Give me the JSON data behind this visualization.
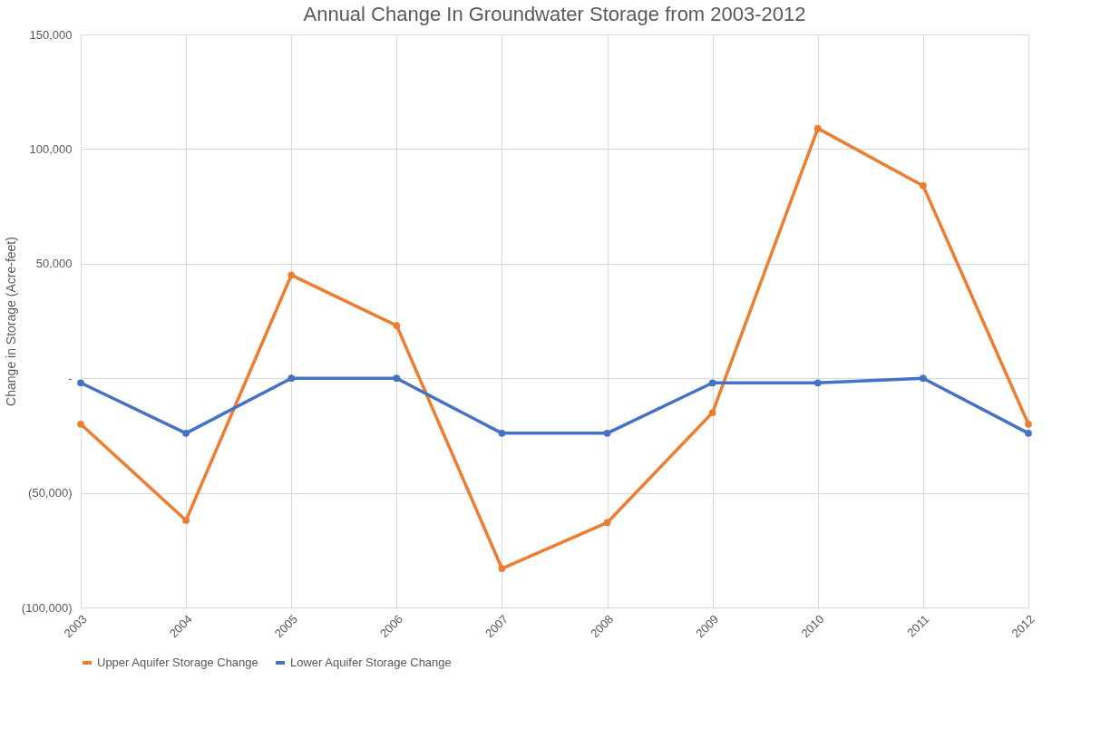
{
  "chart_data": {
    "type": "line",
    "title": "Annual Change In Groundwater Storage from 2003-2012",
    "ylabel": "Change in Storage (Acre-feet)",
    "categories": [
      "2003",
      "2004",
      "2005",
      "2006",
      "2007",
      "2008",
      "2009",
      "2010",
      "2011",
      "2012"
    ],
    "series": [
      {
        "name": "Upper Aquifer Storage Change",
        "color": "#ed7d31",
        "values": [
          -20000,
          -62000,
          45000,
          23000,
          -83000,
          -63000,
          -15000,
          109000,
          84000,
          -20000
        ]
      },
      {
        "name": "Lower Aquifer Storage Change",
        "color": "#4472c4",
        "values": [
          -2000,
          -24000,
          0,
          0,
          -24000,
          -24000,
          -2000,
          -2000,
          0,
          -24000
        ]
      }
    ],
    "ylim": [
      -100000,
      150000
    ],
    "yticks": [
      {
        "value": -100000,
        "label": "(100,000)"
      },
      {
        "value": -50000,
        "label": "(50,000)"
      },
      {
        "value": 0,
        "label": "-"
      },
      {
        "value": 50000,
        "label": "50,000"
      },
      {
        "value": 100000,
        "label": "100,000"
      },
      {
        "value": 150000,
        "label": "150,000"
      }
    ],
    "grid": true,
    "legend": "bottom",
    "marker": "circle",
    "line_style": "solid"
  }
}
